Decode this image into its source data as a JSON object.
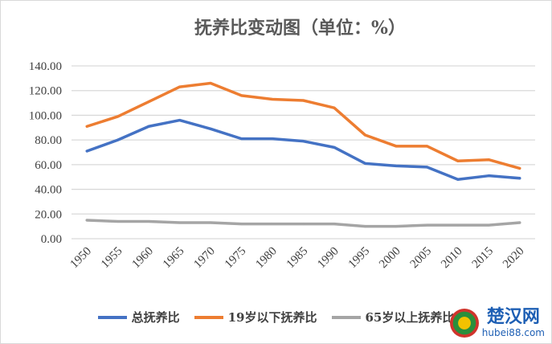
{
  "chart_data": {
    "type": "line",
    "title": "抚养比变动图（单位：%）",
    "x": [
      1950,
      1955,
      1960,
      1965,
      1970,
      1975,
      1980,
      1985,
      1990,
      1995,
      2000,
      2005,
      2010,
      2015,
      2020
    ],
    "yticks": [
      "0.00",
      "20.00",
      "40.00",
      "60.00",
      "80.00",
      "100.00",
      "120.00",
      "140.00"
    ],
    "ylim": [
      0,
      140
    ],
    "grid": true,
    "legend": "bottom",
    "series": [
      {
        "name": "总抚养比",
        "color": "#4472c4",
        "values": [
          71,
          80,
          91,
          96,
          89,
          81,
          81,
          79,
          74,
          61,
          59,
          58,
          48,
          51,
          49
        ]
      },
      {
        "name": "19岁以下抚养比",
        "color": "#ed7d31",
        "values": [
          91,
          99,
          111,
          123,
          126,
          116,
          113,
          112,
          106,
          84,
          75,
          75,
          63,
          64,
          57
        ]
      },
      {
        "name": "65岁以上抚养比",
        "color": "#a5a5a5",
        "values": [
          15,
          14,
          14,
          13,
          13,
          12,
          12,
          12,
          12,
          10,
          10,
          11,
          11,
          11,
          13
        ]
      }
    ]
  },
  "watermark": {
    "cn": "楚汉网",
    "en": "hubei88.com"
  }
}
